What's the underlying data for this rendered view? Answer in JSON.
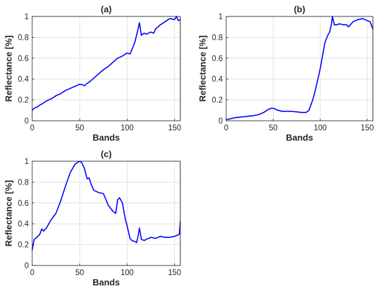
{
  "chart_data": [
    {
      "id": "a",
      "type": "line",
      "title": "(a)",
      "xlabel": "Bands",
      "ylabel": "Reflectance [%]",
      "xlim": [
        0,
        156
      ],
      "ylim": [
        0,
        1
      ],
      "xticks": [
        0,
        50,
        100,
        150
      ],
      "yticks": [
        0,
        0.2,
        0.4,
        0.6,
        0.8,
        1
      ],
      "grid": true,
      "series": [
        {
          "color": "#0000ff",
          "x": [
            0,
            2,
            5,
            8,
            10,
            15,
            20,
            25,
            30,
            35,
            40,
            45,
            50,
            53,
            55,
            58,
            60,
            65,
            70,
            75,
            80,
            85,
            90,
            95,
            100,
            103,
            105,
            108,
            110,
            112,
            113,
            115,
            118,
            120,
            125,
            128,
            130,
            135,
            140,
            145,
            150,
            152,
            154,
            156
          ],
          "y": [
            0.1,
            0.12,
            0.13,
            0.15,
            0.16,
            0.19,
            0.21,
            0.24,
            0.26,
            0.29,
            0.31,
            0.33,
            0.35,
            0.345,
            0.335,
            0.36,
            0.37,
            0.41,
            0.45,
            0.49,
            0.52,
            0.56,
            0.6,
            0.62,
            0.65,
            0.64,
            0.68,
            0.75,
            0.82,
            0.9,
            0.94,
            0.82,
            0.84,
            0.83,
            0.85,
            0.84,
            0.88,
            0.92,
            0.95,
            0.98,
            0.97,
            1.0,
            0.96,
            0.97
          ]
        }
      ]
    },
    {
      "id": "b",
      "type": "line",
      "title": "(b)",
      "xlabel": "Bands",
      "ylabel": "Reflectance [%]",
      "xlim": [
        0,
        156
      ],
      "ylim": [
        0,
        1
      ],
      "xticks": [
        0,
        50,
        100,
        150
      ],
      "yticks": [
        0,
        0.2,
        0.4,
        0.6,
        0.8,
        1
      ],
      "grid": true,
      "series": [
        {
          "color": "#0000ff",
          "x": [
            0,
            5,
            10,
            20,
            30,
            35,
            40,
            45,
            48,
            50,
            55,
            60,
            70,
            80,
            85,
            88,
            92,
            95,
            98,
            100,
            103,
            105,
            108,
            110,
            112,
            113,
            115,
            118,
            120,
            125,
            128,
            130,
            135,
            140,
            145,
            150,
            153,
            156
          ],
          "y": [
            0.01,
            0.02,
            0.03,
            0.04,
            0.05,
            0.06,
            0.08,
            0.11,
            0.12,
            0.12,
            0.1,
            0.09,
            0.09,
            0.08,
            0.08,
            0.1,
            0.2,
            0.3,
            0.42,
            0.5,
            0.65,
            0.75,
            0.82,
            0.85,
            0.93,
            1.0,
            0.92,
            0.92,
            0.93,
            0.92,
            0.92,
            0.9,
            0.95,
            0.97,
            0.98,
            0.96,
            0.95,
            0.88
          ]
        }
      ]
    },
    {
      "id": "c",
      "type": "line",
      "title": "(c)",
      "xlabel": "Bands",
      "ylabel": "Reflectance [%]",
      "xlim": [
        0,
        156
      ],
      "ylim": [
        0,
        1
      ],
      "xticks": [
        0,
        50,
        100,
        150
      ],
      "yticks": [
        0,
        0.2,
        0.4,
        0.6,
        0.8,
        1
      ],
      "grid": true,
      "series": [
        {
          "color": "#0000ff",
          "x": [
            0,
            2,
            5,
            8,
            10,
            12,
            15,
            20,
            25,
            30,
            35,
            40,
            45,
            48,
            50,
            52,
            55,
            58,
            60,
            62,
            65,
            70,
            75,
            80,
            85,
            88,
            90,
            92,
            95,
            98,
            100,
            103,
            105,
            108,
            110,
            112,
            113,
            115,
            118,
            120,
            125,
            130,
            135,
            140,
            145,
            150,
            153,
            155,
            156
          ],
          "y": [
            0.15,
            0.25,
            0.27,
            0.3,
            0.35,
            0.33,
            0.36,
            0.44,
            0.5,
            0.62,
            0.76,
            0.89,
            0.97,
            0.99,
            1.0,
            0.99,
            0.93,
            0.83,
            0.84,
            0.78,
            0.72,
            0.7,
            0.69,
            0.58,
            0.52,
            0.5,
            0.63,
            0.65,
            0.6,
            0.45,
            0.38,
            0.26,
            0.24,
            0.23,
            0.22,
            0.3,
            0.36,
            0.25,
            0.24,
            0.25,
            0.27,
            0.26,
            0.28,
            0.27,
            0.27,
            0.28,
            0.29,
            0.3,
            0.42
          ]
        }
      ]
    }
  ]
}
